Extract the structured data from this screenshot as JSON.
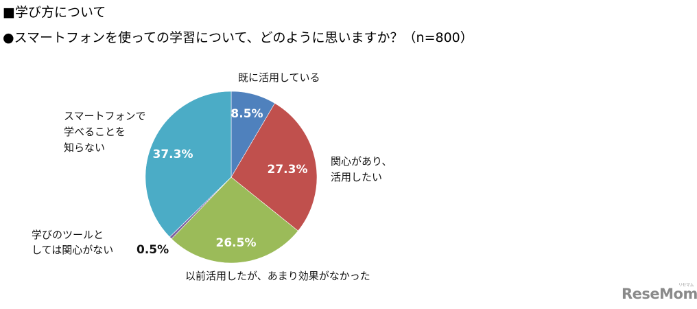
{
  "header": {
    "section_title": "■学び方について",
    "question": "●スマートフォンを使っての学習について、どのように思いますか？（n=800）"
  },
  "labels": {
    "already_using": "既に活用している",
    "interested_line1": "関心があり、",
    "interested_line2": "活用したい",
    "previously_used": "以前活用したが、あまり効果がなかった",
    "no_interest_line1": "学びのツールと",
    "no_interest_line2": "しては関心がない",
    "didnt_know_line1": "スマートフォンで",
    "didnt_know_line2": "学べることを",
    "didnt_know_line3": "知らない"
  },
  "percent_labels": {
    "already_using": "8.5%",
    "interested": "27.3%",
    "previously_used": "26.5%",
    "no_interest": "0.5%",
    "didnt_know": "37.3%"
  },
  "watermark": {
    "brand": "ReseMom",
    "ruby": "リセマム"
  },
  "chart_data": {
    "type": "pie",
    "title": "スマートフォンを使っての学習について、どのように思いますか？（n=800）",
    "section": "学び方について",
    "n": 800,
    "start_angle": "12 o'clock",
    "direction": "clockwise",
    "categories": [
      "既に活用している",
      "関心があり、活用したい",
      "以前活用したが、あまり効果がなかった",
      "学びのツールとしては関心がない",
      "スマートフォンで学べることを知らない"
    ],
    "values": [
      8.5,
      27.3,
      26.5,
      0.5,
      37.3
    ],
    "unit": "%",
    "colors": [
      "#4F81BD",
      "#C0504D",
      "#9BBB59",
      "#8064A2",
      "#4BACC6"
    ],
    "legend": "none (direct labels)"
  }
}
